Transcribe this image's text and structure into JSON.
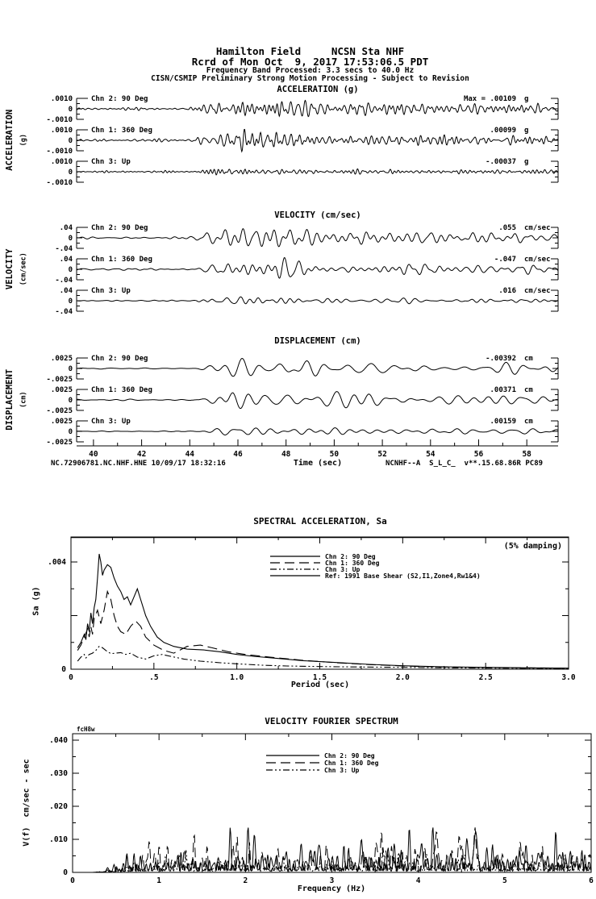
{
  "header": {
    "station_line": "Hamilton Field     NCSN Sta NHF",
    "record_line": "Rcrd of Mon Oct  9, 2017 17:53:06.5 PDT",
    "band_line": "Frequency Band Processed: 3.3 secs to 40.0 Hz",
    "disclaimer_line": "CISN/CSMIP Preliminary Strong Motion Processing - Subject to Revision"
  },
  "footer": {
    "left": "NC.72906781.NC.NHF.HNE 10/09/17 18:32:16",
    "right": "NCNHF--A  S_L_C_  v**.15.68.86R PC89"
  },
  "chart_data": [
    {
      "type": "line",
      "id": "time-series",
      "x_axis": {
        "label": "Time (sec)",
        "range": [
          39.3,
          59.3
        ],
        "major_tick_values": [
          40,
          42,
          44,
          46,
          48,
          50,
          52,
          54,
          56,
          58
        ],
        "minor_tick_step": 1
      },
      "groups": [
        {
          "title": "ACCELERATION (g)",
          "side_label": "ACCELERATION",
          "side_unit": "(g)",
          "unit": "g",
          "full_scale": 0.001,
          "y_tick_labels": [
            ".0010",
            "0",
            "-.0010"
          ],
          "channels": [
            {
              "label": "Chn 2: 90 Deg",
              "max_label": "Max =  .00109",
              "max_value": 0.00109,
              "synth": {
                "seed": 21,
                "fmin": 2.2,
                "fmax": 6.5,
                "quiet": 0.17,
                "t0": 43.9,
                "tp": 45.3,
                "peak": 0.98,
                "tail": 0.42,
                "tau": 7
              }
            },
            {
              "label": "Chn 1: 360 Deg",
              "max_label": ".00099",
              "max_value": 0.00099,
              "synth": {
                "seed": 57,
                "fmin": 2.2,
                "fmax": 6.5,
                "quiet": 0.16,
                "t0": 43.9,
                "tp": 45.4,
                "peak": 0.88,
                "tail": 0.38,
                "tau": 7
              }
            },
            {
              "label": "Chn 3: Up",
              "max_label": "-.00037",
              "max_value": -0.00037,
              "synth": {
                "seed": 93,
                "fmin": 2.5,
                "fmax": 7.0,
                "quiet": 0.12,
                "t0": 44.0,
                "tp": 45.5,
                "peak": 0.32,
                "tail": 0.16,
                "tau": 8
              }
            }
          ]
        },
        {
          "title": "VELOCITY (cm/sec)",
          "side_label": "VELOCITY",
          "side_unit": "(cm/sec)",
          "unit": "cm/sec",
          "full_scale": 0.04,
          "y_tick_labels": [
            ".04",
            "0",
            "-.04"
          ],
          "channels": [
            {
              "label": "Chn 2: 90 Deg",
              "max_label": ".055",
              "max_value": 0.055,
              "synth": {
                "seed": 35,
                "fmin": 1.1,
                "fmax": 3.2,
                "quiet": 0.14,
                "t0": 44.2,
                "tp": 45.4,
                "peak": 1.3,
                "tail": 0.5,
                "tau": 5.5
              }
            },
            {
              "label": "Chn 1: 360 Deg",
              "max_label": "-.047",
              "max_value": -0.047,
              "synth": {
                "seed": 71,
                "fmin": 1.1,
                "fmax": 3.2,
                "quiet": 0.13,
                "t0": 44.2,
                "tp": 45.5,
                "peak": 1.15,
                "tail": 0.45,
                "tau": 5.5
              }
            },
            {
              "label": "Chn 3: Up",
              "max_label": ".016",
              "max_value": 0.016,
              "synth": {
                "seed": 12,
                "fmin": 1.3,
                "fmax": 3.6,
                "quiet": 0.1,
                "t0": 44.3,
                "tp": 45.6,
                "peak": 0.4,
                "tail": 0.18,
                "tau": 6
              }
            }
          ]
        },
        {
          "title": "DISPLACEMENT (cm)",
          "side_label": "DISPLACEMENT",
          "side_unit": "(cm)",
          "unit": "cm",
          "full_scale": 0.0025,
          "y_tick_labels": [
            ".0025",
            "0",
            "-.0025"
          ],
          "channels": [
            {
              "label": "Chn 2: 90 Deg",
              "max_label": "-.00392",
              "max_value": -0.00392,
              "synth": {
                "seed": 44,
                "fmin": 0.7,
                "fmax": 1.9,
                "quiet": 0.1,
                "t0": 44.3,
                "tp": 45.6,
                "peak": 1.5,
                "tail": 0.5,
                "tau": 5
              }
            },
            {
              "label": "Chn 1: 360 Deg",
              "max_label": ".00371",
              "max_value": 0.00371,
              "synth": {
                "seed": 66,
                "fmin": 0.7,
                "fmax": 1.9,
                "quiet": 0.1,
                "t0": 44.4,
                "tp": 45.8,
                "peak": 1.42,
                "tail": 0.48,
                "tau": 5
              }
            },
            {
              "label": "Chn 3: Up",
              "max_label": ".00159",
              "max_value": 0.00159,
              "synth": {
                "seed": 29,
                "fmin": 0.8,
                "fmax": 2.1,
                "quiet": 0.08,
                "t0": 44.4,
                "tp": 45.7,
                "peak": 0.6,
                "tail": 0.22,
                "tau": 6
              }
            }
          ]
        }
      ]
    },
    {
      "type": "line",
      "id": "spectral-acceleration",
      "title": "SPECTRAL ACCELERATION, Sa",
      "damping_note": "(5% damping)",
      "x_axis": {
        "label": "Period (sec)",
        "range": [
          0,
          3
        ],
        "minor_tick_step": 0.25,
        "major_ticks": [
          {
            "v": 0,
            "label": "0"
          },
          {
            "v": 0.5,
            "label": ".5"
          },
          {
            "v": 1,
            "label": "1.0"
          },
          {
            "v": 1.5,
            "label": "1.5"
          },
          {
            "v": 2,
            "label": "2.0"
          },
          {
            "v": 2.5,
            "label": "2.5"
          },
          {
            "v": 3,
            "label": "3.0"
          }
        ]
      },
      "y_axis": {
        "label": "Sa (g)",
        "range": [
          0,
          0.00493
        ],
        "major_tick_values": [
          0,
          0.002,
          0.004
        ],
        "minor_tick_values": [
          0.001,
          0.003
        ],
        "labeled_ticks": [
          {
            "v": 0.004,
            "label": ".004"
          },
          {
            "v": 0,
            "label": "0"
          }
        ]
      },
      "series": [
        {
          "name": "Chn 2: 90 Deg",
          "style": "solid",
          "points": [
            [
              0.04,
              0.0008
            ],
            [
              0.06,
              0.001
            ],
            [
              0.08,
              0.0013
            ],
            [
              0.09,
              0.0011
            ],
            [
              0.1,
              0.0017
            ],
            [
              0.11,
              0.0014
            ],
            [
              0.12,
              0.0021
            ],
            [
              0.13,
              0.0017
            ],
            [
              0.14,
              0.0023
            ],
            [
              0.15,
              0.0026
            ],
            [
              0.16,
              0.0034
            ],
            [
              0.17,
              0.0043
            ],
            [
              0.18,
              0.004
            ],
            [
              0.19,
              0.0035
            ],
            [
              0.2,
              0.0037
            ],
            [
              0.22,
              0.0039
            ],
            [
              0.24,
              0.0038
            ],
            [
              0.26,
              0.0034
            ],
            [
              0.28,
              0.0031
            ],
            [
              0.3,
              0.0029
            ],
            [
              0.32,
              0.0026
            ],
            [
              0.34,
              0.0027
            ],
            [
              0.36,
              0.0024
            ],
            [
              0.38,
              0.0027
            ],
            [
              0.4,
              0.003
            ],
            [
              0.42,
              0.0026
            ],
            [
              0.45,
              0.002
            ],
            [
              0.48,
              0.0016
            ],
            [
              0.52,
              0.0012
            ],
            [
              0.56,
              0.001
            ],
            [
              0.62,
              0.00085
            ],
            [
              0.7,
              0.00075
            ],
            [
              0.8,
              0.00072
            ],
            [
              0.9,
              0.00065
            ],
            [
              1.0,
              0.00055
            ],
            [
              1.1,
              0.00048
            ],
            [
              1.25,
              0.0004
            ],
            [
              1.4,
              0.00032
            ],
            [
              1.6,
              0.00025
            ],
            [
              1.8,
              0.00018
            ],
            [
              2.0,
              0.00013
            ],
            [
              2.25,
              9e-05
            ],
            [
              2.5,
              7e-05
            ],
            [
              2.75,
              5e-05
            ],
            [
              3.0,
              4e-05
            ]
          ]
        },
        {
          "name": "Chn 1: 360 Deg",
          "style": "longdash",
          "points": [
            [
              0.04,
              0.0007
            ],
            [
              0.06,
              0.0009
            ],
            [
              0.08,
              0.0012
            ],
            [
              0.1,
              0.0015
            ],
            [
              0.11,
              0.0012
            ],
            [
              0.12,
              0.0016
            ],
            [
              0.13,
              0.0013
            ],
            [
              0.14,
              0.0019
            ],
            [
              0.16,
              0.0022
            ],
            [
              0.18,
              0.0017
            ],
            [
              0.2,
              0.0022
            ],
            [
              0.22,
              0.0029
            ],
            [
              0.24,
              0.0026
            ],
            [
              0.26,
              0.002
            ],
            [
              0.28,
              0.0016
            ],
            [
              0.3,
              0.0014
            ],
            [
              0.33,
              0.0013
            ],
            [
              0.36,
              0.0016
            ],
            [
              0.39,
              0.0018
            ],
            [
              0.42,
              0.0016
            ],
            [
              0.45,
              0.0012
            ],
            [
              0.5,
              0.0009
            ],
            [
              0.56,
              0.0007
            ],
            [
              0.62,
              0.0006
            ],
            [
              0.7,
              0.00085
            ],
            [
              0.78,
              0.0009
            ],
            [
              0.85,
              0.0008
            ],
            [
              0.95,
              0.00065
            ],
            [
              1.05,
              0.00055
            ],
            [
              1.2,
              0.00045
            ],
            [
              1.4,
              0.00033
            ],
            [
              1.6,
              0.00024
            ],
            [
              1.8,
              0.00017
            ],
            [
              2.0,
              0.00012
            ],
            [
              2.25,
              8e-05
            ],
            [
              2.5,
              6e-05
            ],
            [
              2.75,
              5e-05
            ],
            [
              3.0,
              4e-05
            ]
          ]
        },
        {
          "name": "Chn 3: Up",
          "style": "dashdotdot",
          "points": [
            [
              0.04,
              0.0003
            ],
            [
              0.06,
              0.00045
            ],
            [
              0.08,
              0.00055
            ],
            [
              0.09,
              0.00042
            ],
            [
              0.11,
              0.00055
            ],
            [
              0.13,
              0.0006
            ],
            [
              0.15,
              0.0007
            ],
            [
              0.17,
              0.00085
            ],
            [
              0.19,
              0.0008
            ],
            [
              0.21,
              0.0007
            ],
            [
              0.24,
              0.00058
            ],
            [
              0.27,
              0.0006
            ],
            [
              0.3,
              0.00062
            ],
            [
              0.33,
              0.00055
            ],
            [
              0.36,
              0.0006
            ],
            [
              0.4,
              0.00045
            ],
            [
              0.45,
              0.00038
            ],
            [
              0.5,
              0.0005
            ],
            [
              0.55,
              0.00055
            ],
            [
              0.6,
              0.00048
            ],
            [
              0.68,
              0.00038
            ],
            [
              0.78,
              0.0003
            ],
            [
              0.9,
              0.00024
            ],
            [
              1.0,
              0.0002
            ],
            [
              1.15,
              0.00015
            ],
            [
              1.3,
              0.00012
            ],
            [
              1.5,
              0.0001
            ],
            [
              1.75,
              8e-05
            ],
            [
              2.0,
              7e-05
            ],
            [
              2.3,
              5e-05
            ],
            [
              2.6,
              4e-05
            ],
            [
              3.0,
              3e-05
            ]
          ]
        },
        {
          "name": "Ref: 1991 Base Shear (S2,I1,Zone4,Rw1&4)",
          "style": "solid",
          "clipped_at_top": true,
          "points": [
            [
              0,
              0.005
            ],
            [
              3,
              0.005
            ]
          ]
        }
      ]
    },
    {
      "type": "line",
      "id": "velocity-fourier-spectrum",
      "title": "VELOCITY FOURIER SPECTRUM",
      "corner_note": "fcH8w",
      "x_axis": {
        "label": "Frequency (Hz)",
        "range": [
          0,
          6
        ],
        "minor_tick_step": 0.5,
        "major_ticks": [
          {
            "v": 0,
            "label": "0"
          },
          {
            "v": 1,
            "label": "1"
          },
          {
            "v": 2,
            "label": "2"
          },
          {
            "v": 3,
            "label": "3"
          },
          {
            "v": 4,
            "label": "4"
          },
          {
            "v": 5,
            "label": "5"
          },
          {
            "v": 6,
            "label": "6"
          }
        ]
      },
      "y_axis": {
        "label": "V(f)  cm/sec - sec",
        "range": [
          0,
          0.042
        ],
        "minor_tick_step": 0.005,
        "labeled_ticks": [
          {
            "v": 0.04,
            "label": ".040"
          },
          {
            "v": 0.03,
            "label": ".030"
          },
          {
            "v": 0.02,
            "label": ".020"
          },
          {
            "v": 0.01,
            "label": ".010"
          },
          {
            "v": 0,
            "label": "0"
          }
        ]
      },
      "series": [
        {
          "name": "Chn 2: 90 Deg",
          "style": "solid",
          "synth": {
            "seed": 5,
            "scale": 0.016
          }
        },
        {
          "name": "Chn 1: 360 Deg",
          "style": "longdash",
          "synth": {
            "seed": 17,
            "scale": 0.0125
          }
        },
        {
          "name": "Chn 3: Up",
          "style": "dashdotdot",
          "synth": {
            "seed": 31,
            "scale": 0.0055
          }
        }
      ]
    }
  ]
}
